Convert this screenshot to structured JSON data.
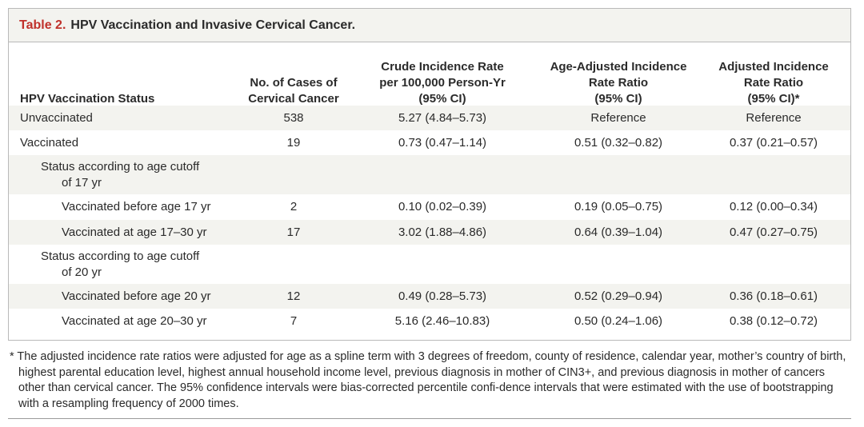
{
  "table": {
    "label": "Table 2.",
    "title": "HPV Vaccination and Invasive Cervical Cancer.",
    "columns": [
      "HPV Vaccination Status",
      "No. of Cases of\nCervical Cancer",
      "Crude Incidence Rate\nper 100,000 Person-Yr\n(95% CI)",
      "Age-Adjusted Incidence\nRate Ratio\n(95% CI)",
      "Adjusted Incidence\nRate Ratio\n(95% CI)*"
    ],
    "rows": [
      [
        "Unvaccinated",
        "538",
        "5.27 (4.84–5.73)",
        "Reference",
        "Reference"
      ],
      [
        "Vaccinated",
        "19",
        "0.73 (0.47–1.14)",
        "0.51 (0.32–0.82)",
        "0.37 (0.21–0.57)"
      ],
      [
        "Status according to age cutoff\nof 17 yr",
        "",
        "",
        "",
        ""
      ],
      [
        "Vaccinated before age 17 yr",
        "2",
        "0.10 (0.02–0.39)",
        "0.19 (0.05–0.75)",
        "0.12 (0.00–0.34)"
      ],
      [
        "Vaccinated at age 17–30 yr",
        "17",
        "3.02 (1.88–4.86)",
        "0.64 (0.39–1.04)",
        "0.47 (0.27–0.75)"
      ],
      [
        "Status according to age cutoff\nof 20 yr",
        "",
        "",
        "",
        ""
      ],
      [
        "Vaccinated before age 20 yr",
        "12",
        "0.49 (0.28–5.73)",
        "0.52 (0.29–0.94)",
        "0.36 (0.18–0.61)"
      ],
      [
        "Vaccinated at age 20–30 yr",
        "7",
        "5.16 (2.46–10.83)",
        "0.50 (0.24–1.06)",
        "0.38 (0.12–0.72)"
      ]
    ]
  },
  "footnote": "* The adjusted incidence rate ratios were adjusted for age as a spline term with 3 degrees of freedom, county of residence, calendar year, mother’s country of birth, highest parental education level, highest annual household income level, previous diagnosis in mother of CIN3+, and previous diagnosis in mother of cancers other than cervical cancer. The 95% confidence intervals were bias-corrected percentile confi-dence intervals that were estimated with the use of bootstrapping with a resampling frequency of 2000 times.",
  "colors": {
    "label_red": "#c0312b",
    "shade": "#f3f3ef",
    "border": "#b9b9b9"
  }
}
